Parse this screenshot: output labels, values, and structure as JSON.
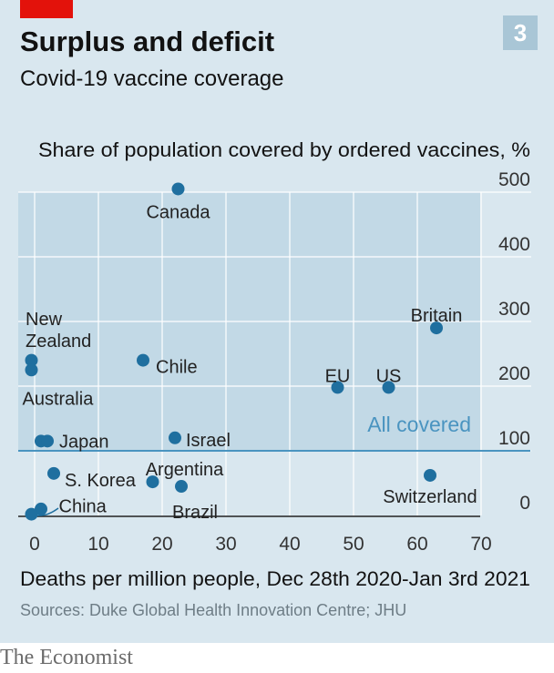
{
  "header": {
    "title": "Surplus and deficit",
    "subtitle": "Covid-19 vaccine coverage",
    "chart_number": "3"
  },
  "footer": {
    "source": "Sources: Duke Global Health Innovation Centre; JHU",
    "publisher": "The Economist"
  },
  "colors": {
    "background": "#d9e7ef",
    "plot_band": "#c2d9e6",
    "point": "#1f6f9f",
    "reference_line": "#4a94c0",
    "accent": "#e3120b"
  },
  "chart_data": {
    "type": "scatter",
    "title": "Surplus and deficit",
    "subtitle": "Covid-19 vaccine coverage",
    "ylabel": "Share of population covered by ordered vaccines, %",
    "xlabel": "Deaths per million people, Dec 28th 2020-Jan 3rd 2021",
    "xlim": [
      -2,
      74
    ],
    "ylim": [
      -3,
      520
    ],
    "x_ticks": [
      0,
      10,
      20,
      30,
      40,
      50,
      60,
      70
    ],
    "y_ticks": [
      0,
      100,
      200,
      300,
      400,
      500
    ],
    "grid": true,
    "reference_line": {
      "y": 100,
      "label": "All covered"
    },
    "points": [
      {
        "label": "Canada",
        "x": 22.5,
        "y": 505
      },
      {
        "label": "Britain",
        "x": 63,
        "y": 290
      },
      {
        "label": "New Zealand",
        "x": -0.5,
        "y": 240
      },
      {
        "label": "Australia",
        "x": -0.5,
        "y": 225
      },
      {
        "label": "Chile",
        "x": 17,
        "y": 240
      },
      {
        "label": "EU",
        "x": 47.5,
        "y": 198
      },
      {
        "label": "US",
        "x": 55.5,
        "y": 198
      },
      {
        "label": "",
        "x": 1,
        "y": 115
      },
      {
        "label": "Japan",
        "x": 2,
        "y": 115
      },
      {
        "label": "Israel",
        "x": 22,
        "y": 120
      },
      {
        "label": "S. Korea",
        "x": 3,
        "y": 65
      },
      {
        "label": "Argentina",
        "x": 18.5,
        "y": 52
      },
      {
        "label": "Brazil",
        "x": 23,
        "y": 45
      },
      {
        "label": "Switzerland",
        "x": 62,
        "y": 62
      },
      {
        "label": "",
        "x": 1,
        "y": 10
      },
      {
        "label": "China",
        "x": -0.5,
        "y": 2
      }
    ]
  }
}
